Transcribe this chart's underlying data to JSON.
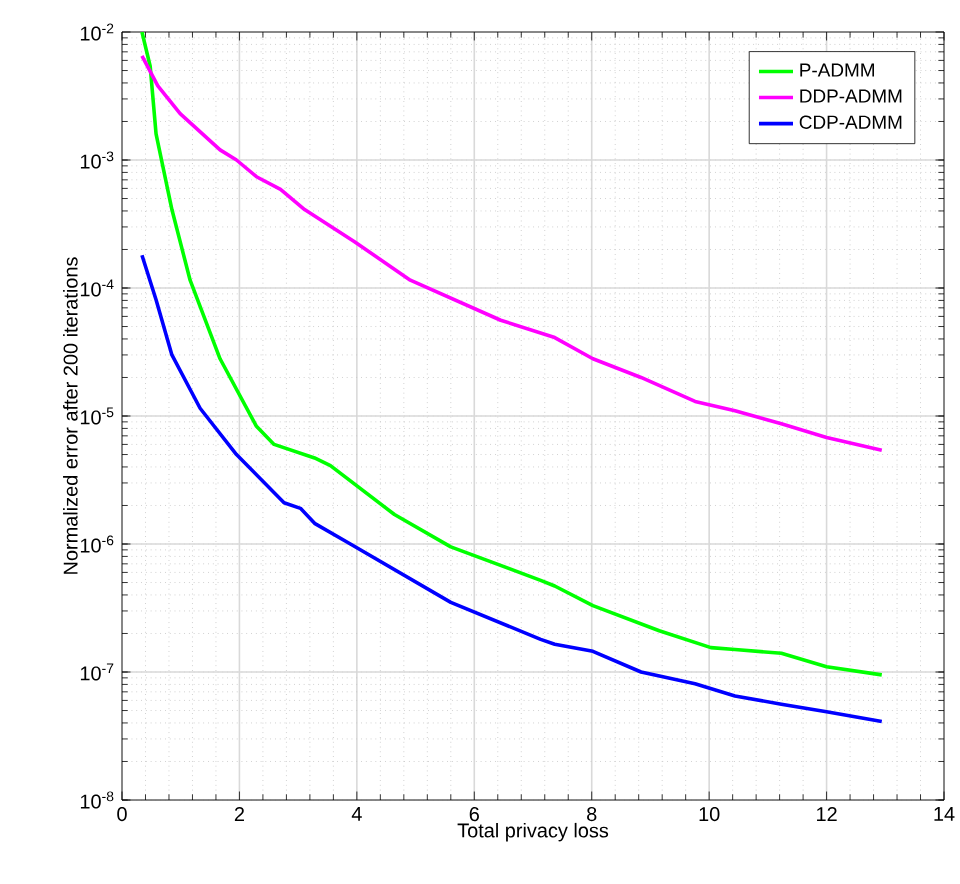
{
  "chart_data": {
    "type": "line",
    "xlabel": "Total privacy loss",
    "ylabel": "Normalized error after 200 iterations",
    "xlim": [
      0,
      14
    ],
    "ylim": [
      1e-08,
      0.01
    ],
    "xticks": [
      0,
      2,
      4,
      6,
      8,
      10,
      12,
      14
    ],
    "yticks": [
      {
        "value": 1e-08,
        "label": "10$^{-8}$"
      },
      {
        "value": 1e-07,
        "label": "10$^{-7}$"
      },
      {
        "value": 1e-06,
        "label": "10$^{-6}$"
      },
      {
        "value": 1e-05,
        "label": "10$^{-5}$"
      },
      {
        "value": 0.0001,
        "label": "10$^{-4}$"
      },
      {
        "value": 0.001,
        "label": "10$^{-3}$"
      },
      {
        "value": 0.01,
        "label": "10$^{-2}$"
      }
    ],
    "log": "y",
    "grid": true,
    "legend": "top right",
    "marker": "none",
    "line_style": "solid",
    "series": [
      {
        "name": "P-ADMM",
        "color": "#00ff00",
        "x": [
          0.34,
          0.48,
          0.58,
          0.85,
          1.16,
          1.67,
          2.29,
          2.59,
          3.28,
          3.55,
          4.64,
          5.6,
          7.13,
          7.37,
          8.02,
          9.15,
          10.03,
          10.44,
          11.23,
          12.0,
          12.94
        ],
        "values": [
          0.01,
          0.0054,
          0.0016,
          0.00041,
          0.000115,
          2.8e-05,
          8.3e-06,
          6e-06,
          4.7e-06,
          4.1e-06,
          1.7e-06,
          9.5e-07,
          5.2e-07,
          4.7e-07,
          3.3e-07,
          2.1e-07,
          1.55e-07,
          1.5e-07,
          1.4e-07,
          1.1e-07,
          9.5e-08
        ]
      },
      {
        "name": "DDP-ADMM",
        "color": "#ff00ff",
        "x": [
          0.34,
          0.61,
          0.99,
          1.67,
          1.95,
          2.29,
          2.7,
          3.11,
          3.96,
          4.91,
          6.45,
          7.37,
          8.02,
          8.84,
          9.76,
          10.44,
          11.23,
          12.0,
          12.94
        ],
        "values": [
          0.0065,
          0.0038,
          0.0023,
          0.0012,
          0.001,
          0.00074,
          0.00059,
          0.00041,
          0.00023,
          0.000115,
          5.6e-05,
          4.1e-05,
          2.8e-05,
          2e-05,
          1.3e-05,
          1.1e-05,
          8.7e-06,
          6.8e-06,
          5.4e-06
        ]
      },
      {
        "name": "CDP-ADMM",
        "color": "#0000ff",
        "x": [
          0.34,
          0.58,
          0.85,
          1.33,
          1.95,
          2.76,
          3.04,
          3.28,
          3.89,
          5.6,
          7.13,
          7.37,
          8.02,
          8.84,
          9.76,
          10.44,
          11.23,
          12.0,
          12.94
        ],
        "values": [
          0.00018,
          8.1e-05,
          3e-05,
          1.15e-05,
          5e-06,
          2.1e-06,
          1.9e-06,
          1.45e-06,
          1e-06,
          3.5e-07,
          1.8e-07,
          1.65e-07,
          1.45e-07,
          1e-07,
          8.1e-08,
          6.5e-08,
          5.6e-08,
          4.9e-08,
          4.1e-08
        ]
      }
    ]
  }
}
